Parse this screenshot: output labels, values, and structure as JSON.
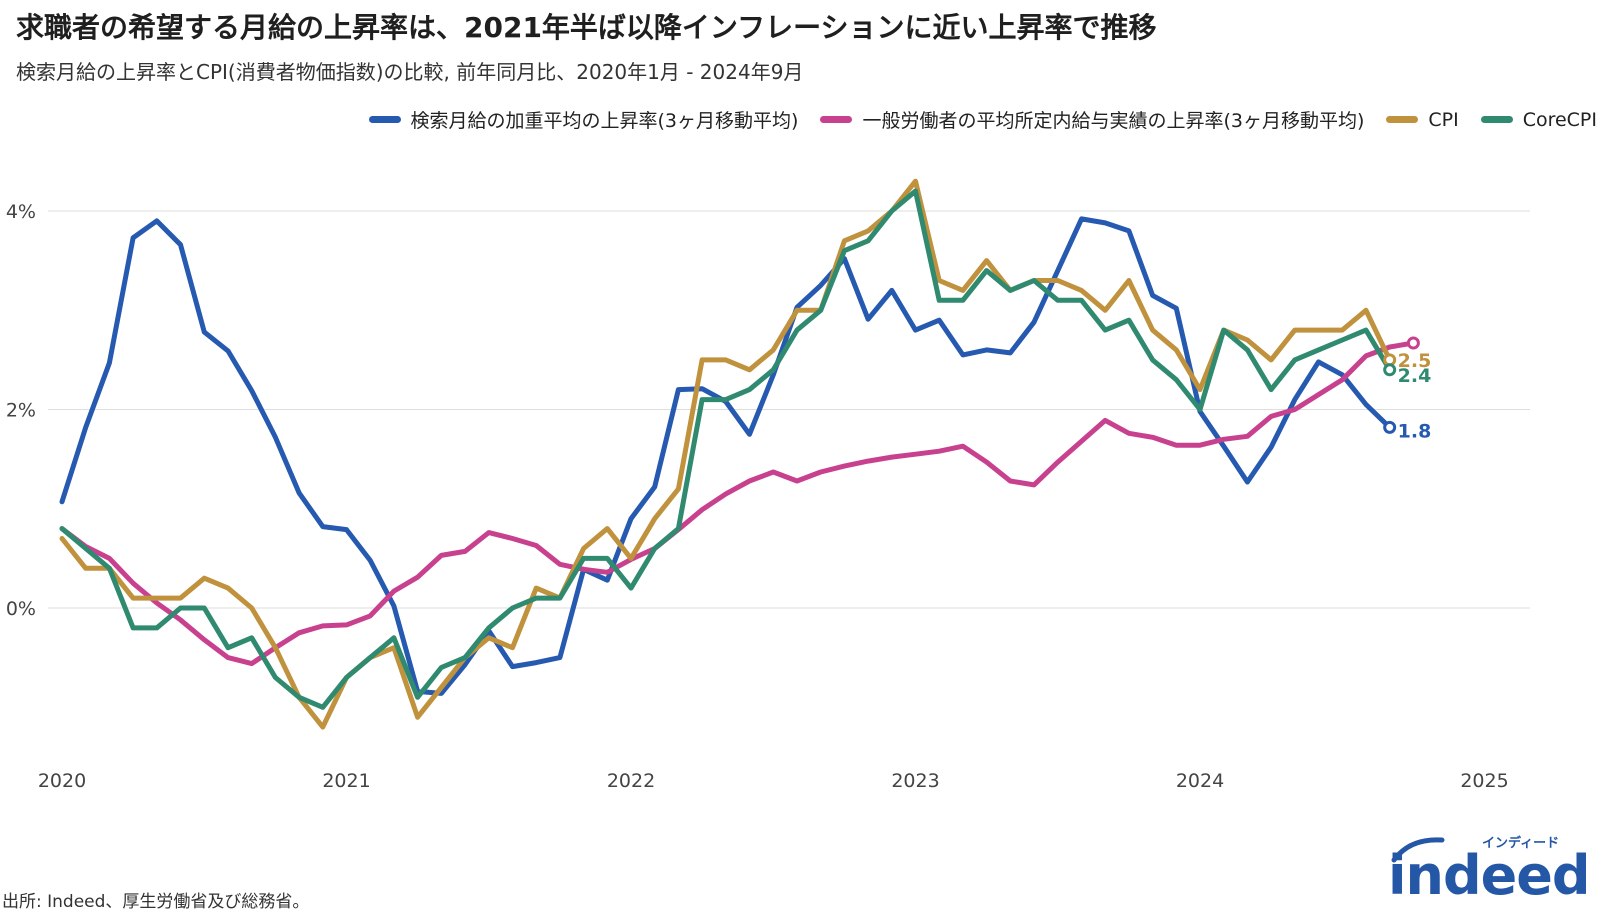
{
  "chart_data": {
    "type": "line",
    "title": "求職者の希望する月給の上昇率は、2021年半ば以降インフレーションに近い上昇率で推移",
    "subtitle": "検索月給の上昇率とCPI(消費者物価指数)の比較, 前年同月比、2020年1月 - 2024年9月",
    "source": "出所: Indeed、厚生労働省及び総務省。",
    "xlabel": "",
    "ylabel": "",
    "x_start": 2020,
    "x_end": 2025,
    "ylim": [
      -1.5,
      4.6
    ],
    "yticks": [
      0,
      2,
      4
    ],
    "ytick_labels": [
      "0%",
      "2%",
      "4%"
    ],
    "xtick_labels": [
      "2020",
      "2021",
      "2022",
      "2023",
      "2024",
      "2025"
    ],
    "legend_position": "top-right",
    "grid": true,
    "series": [
      {
        "name": "検索月給の加重平均の上昇率(3ヶ月移動平均)",
        "color": "#2659b0",
        "end_label": "1.8",
        "values": [
          1.07,
          1.82,
          2.47,
          3.73,
          3.9,
          3.66,
          2.78,
          2.59,
          2.19,
          1.72,
          1.16,
          0.82,
          0.79,
          0.48,
          0.02,
          -0.84,
          -0.86,
          -0.57,
          -0.23,
          -0.59,
          -0.55,
          -0.5,
          0.39,
          0.28,
          0.9,
          1.22,
          2.2,
          2.21,
          2.08,
          1.75,
          2.35,
          3.03,
          3.25,
          3.52,
          2.91,
          3.2,
          2.8,
          2.9,
          2.55,
          2.6,
          2.57,
          2.88,
          3.4,
          3.92,
          3.88,
          3.8,
          3.15,
          3.02,
          1.98,
          1.63,
          1.27,
          1.62,
          2.1,
          2.48,
          2.35,
          2.05,
          1.82
        ]
      },
      {
        "name": "一般労働者の平均所定内給与実績の上昇率(3ヶ月移動平均)",
        "color": "#c8418f",
        "end_label": "",
        "values": [
          0.8,
          0.62,
          0.5,
          0.25,
          0.05,
          -0.12,
          -0.32,
          -0.5,
          -0.56,
          -0.4,
          -0.25,
          -0.18,
          -0.17,
          -0.08,
          0.17,
          0.31,
          0.53,
          0.57,
          0.76,
          0.7,
          0.63,
          0.44,
          0.39,
          0.36,
          0.49,
          0.6,
          0.79,
          0.99,
          1.15,
          1.28,
          1.37,
          1.28,
          1.37,
          1.43,
          1.48,
          1.52,
          1.55,
          1.58,
          1.63,
          1.47,
          1.28,
          1.24,
          1.47,
          1.68,
          1.89,
          1.76,
          1.72,
          1.64,
          1.64,
          1.7,
          1.73,
          1.93,
          2.0,
          2.15,
          2.3,
          2.54,
          2.63,
          2.67
        ]
      },
      {
        "name": "CPI",
        "color": "#c0923d",
        "end_label": "2.5",
        "values": [
          0.7,
          0.4,
          0.4,
          0.1,
          0.1,
          0.1,
          0.3,
          0.2,
          0.0,
          -0.4,
          -0.9,
          -1.2,
          -0.7,
          -0.5,
          -0.4,
          -1.1,
          -0.8,
          -0.5,
          -0.3,
          -0.4,
          0.2,
          0.1,
          0.6,
          0.8,
          0.5,
          0.9,
          1.2,
          2.5,
          2.5,
          2.4,
          2.6,
          3.0,
          3.0,
          3.7,
          3.8,
          4.0,
          4.3,
          3.3,
          3.2,
          3.5,
          3.2,
          3.3,
          3.3,
          3.2,
          3.0,
          3.3,
          2.8,
          2.6,
          2.2,
          2.8,
          2.7,
          2.5,
          2.8,
          2.8,
          2.8,
          3.0,
          2.5
        ]
      },
      {
        "name": "CoreCPI",
        "color": "#2f8a70",
        "end_label": "2.4",
        "values": [
          0.8,
          0.6,
          0.4,
          -0.2,
          -0.2,
          0.0,
          0.0,
          -0.4,
          -0.3,
          -0.7,
          -0.9,
          -1.0,
          -0.7,
          -0.5,
          -0.3,
          -0.9,
          -0.6,
          -0.5,
          -0.2,
          0.0,
          0.1,
          0.1,
          0.5,
          0.5,
          0.2,
          0.6,
          0.8,
          2.1,
          2.1,
          2.2,
          2.4,
          2.8,
          3.0,
          3.6,
          3.7,
          4.0,
          4.2,
          3.1,
          3.1,
          3.4,
          3.2,
          3.3,
          3.1,
          3.1,
          2.8,
          2.9,
          2.5,
          2.3,
          2.0,
          2.8,
          2.6,
          2.2,
          2.5,
          2.6,
          2.7,
          2.8,
          2.4
        ]
      }
    ]
  },
  "logo": {
    "word": "indeed",
    "kana": "インディード",
    "color": "#2557a7"
  }
}
